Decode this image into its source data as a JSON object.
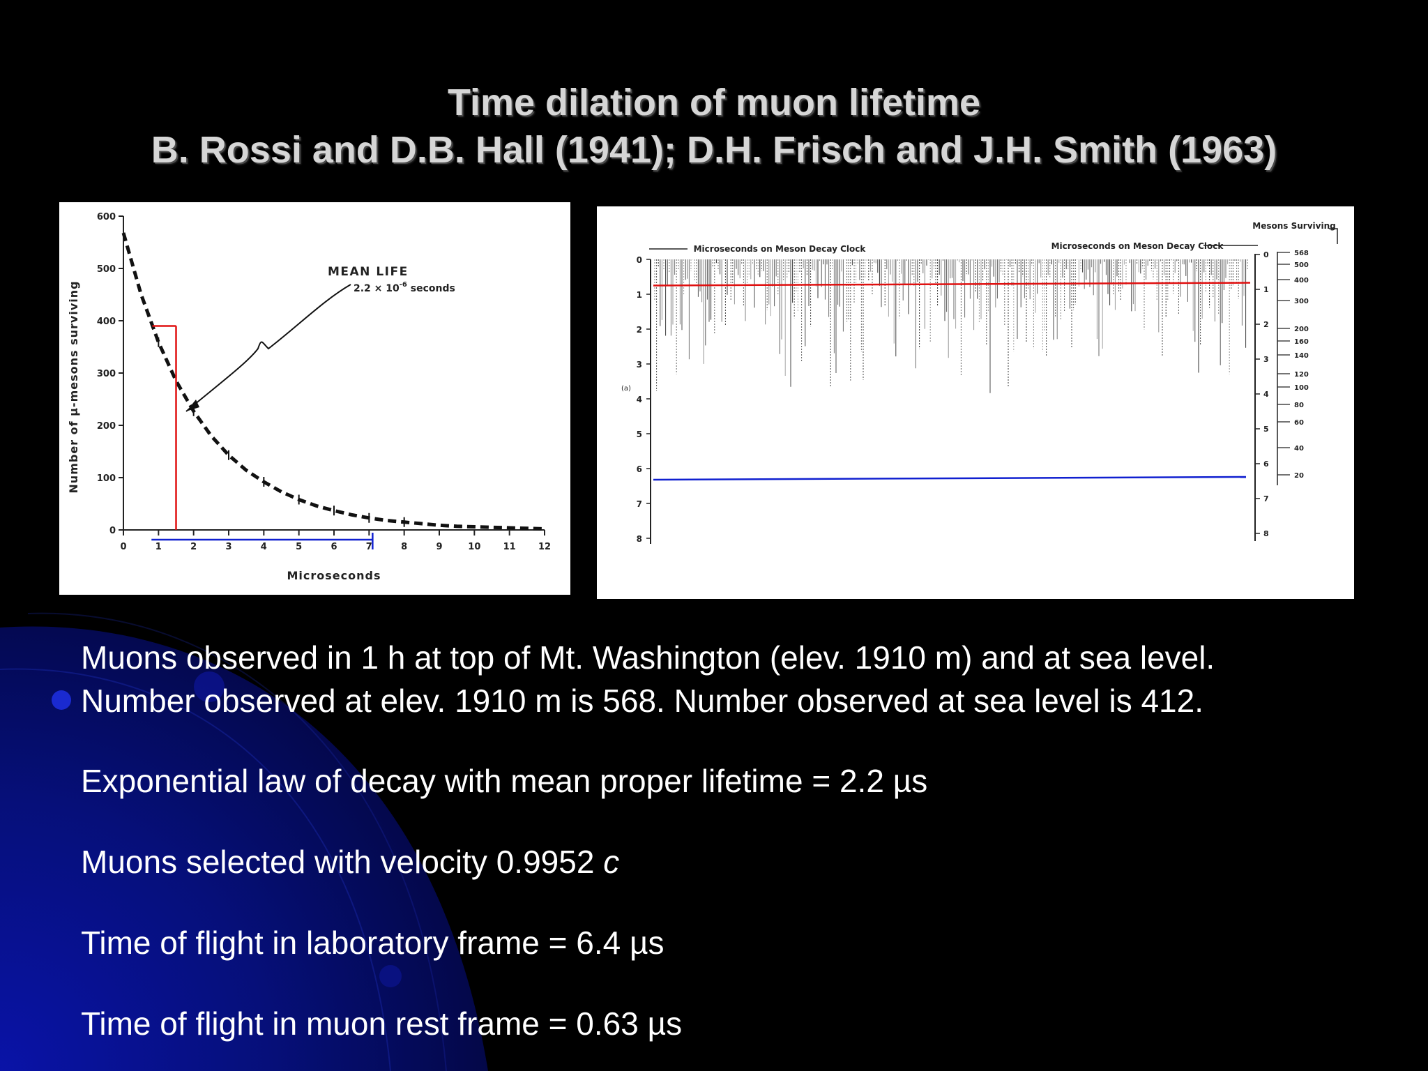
{
  "slide": {
    "title_line1": "Time dilation of muon lifetime",
    "title_line2": "B. Rossi and D.B. Hall (1941);  D.H. Frisch and J.H. Smith (1963)",
    "text_lines": [
      "Muons observed in 1 h at top of Mt. Washington (elev. 1910 m) and at sea level.",
      "Number observed at elev. 1910 m is 568.  Number observed at sea level is 412.",
      "Exponential law of decay with mean proper lifetime = 2.2 µs",
      "Muons selected with velocity 0.9952 ",
      "Time of flight in laboratory frame = 6.4 µs",
      "Time of flight in muon rest frame = 0.63 µs"
    ],
    "velocity_symbol": "c"
  },
  "colors": {
    "background": "#000000",
    "gradient_blue": "#0a14a8",
    "red_marker": "#e01010",
    "blue_marker": "#1020d0"
  },
  "chart_data": [
    {
      "type": "line",
      "xlabel": "Microseconds",
      "ylabel": "Number of μ-mesons surviving",
      "xlim": [
        0,
        12
      ],
      "ylim": [
        0,
        600
      ],
      "x_ticks": [
        "0",
        "1",
        "2",
        "3",
        "4",
        "5",
        "6",
        "7",
        "8",
        "9",
        "10",
        "11",
        "12"
      ],
      "y_ticks": [
        "0",
        "100",
        "200",
        "300",
        "400",
        "500",
        "600"
      ],
      "series": [
        {
          "x": [
            0,
            0.5,
            1,
            1.5,
            2,
            2.5,
            3,
            3.5,
            4,
            4.5,
            5,
            5.5,
            6,
            6.5,
            7,
            7.5,
            8,
            8.5,
            9,
            9.5,
            10,
            11,
            12
          ],
          "values": [
            568,
            451,
            359,
            285,
            227,
            180,
            143,
            114,
            92,
            73,
            58,
            46,
            37,
            29,
            23,
            18,
            15,
            12,
            9,
            7,
            6,
            4,
            2
          ]
        }
      ],
      "annotation_title": "MEAN LIFE",
      "annotation_value": "2.2 × 10",
      "annotation_exponent": "-6",
      "annotation_unit": " seconds",
      "red_marker": {
        "x": 1.5,
        "y": 390
      },
      "blue_marker": {
        "x_start": 0.8,
        "x_end": 7.1
      }
    },
    {
      "type": "line",
      "left_axis_label": "Microseconds on Meson Decay Clock",
      "right_axis_label": "Microseconds on Meson Decay Clock",
      "surviving_label": "Mesons Surviving",
      "left_ticks": [
        "0",
        "1",
        "2",
        "3",
        "4",
        "5",
        "6",
        "7",
        "8"
      ],
      "right_ticks": [
        "0",
        "1",
        "2",
        "3",
        "4",
        "5",
        "6",
        "7",
        "8"
      ],
      "surviving_ticks": [
        "568",
        "500",
        "400",
        "300",
        "200",
        "160",
        "140",
        "120",
        "100",
        "80",
        "60",
        "40",
        "20"
      ],
      "side_label": "(a)",
      "red_line_level": 0.75,
      "blue_line_level": 6.4
    }
  ]
}
